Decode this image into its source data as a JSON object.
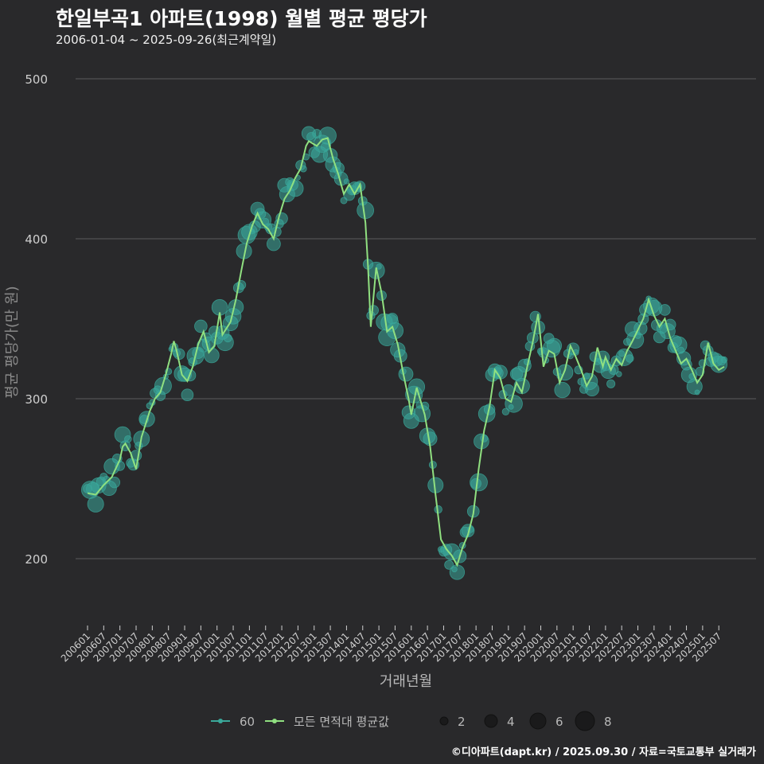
{
  "title": "한일부곡1 아파트(1998) 월별 평균 평당가",
  "subtitle": "2006-01-04 ~ 2025-09-26(최근계약일)",
  "footer": "©디아파트(dapt.kr) / 2025.09.30 / 자료=국토교통부 실거래가",
  "colors": {
    "background": "#29292b",
    "grid": "#5a5a5c",
    "line": "#90e080",
    "bubble": "#3aa89a",
    "text": "#cfcfcf"
  },
  "chart_data": {
    "type": "line",
    "xlabel": "거래년월",
    "ylabel": "평균 평당가(만 원)",
    "ylim": [
      155,
      520
    ],
    "yticks": [
      200,
      300,
      400,
      500
    ],
    "grid": true,
    "legend_position": "bottom",
    "xticks": [
      "200601",
      "200607",
      "200701",
      "200707",
      "200801",
      "200807",
      "200901",
      "200907",
      "201001",
      "201007",
      "201101",
      "201107",
      "201201",
      "201207",
      "201301",
      "201307",
      "201401",
      "201407",
      "201501",
      "201507",
      "201601",
      "201607",
      "201701",
      "201707",
      "201801",
      "201807",
      "201901",
      "201907",
      "202001",
      "202007",
      "202101",
      "202107",
      "202201",
      "202207",
      "202301",
      "202307",
      "202401",
      "202407",
      "202501",
      "202507"
    ],
    "legend": {
      "series": [
        {
          "name": "60",
          "kind": "bubble"
        },
        {
          "name": "모든 면적대 평균값",
          "kind": "line"
        }
      ],
      "sizes": [
        2,
        4,
        6,
        8
      ]
    },
    "series": [
      {
        "name": "모든 면적대 평균값",
        "anchors": [
          [
            "200601",
            241
          ],
          [
            "200604",
            240
          ],
          [
            "200607",
            246
          ],
          [
            "200610",
            251
          ],
          [
            "200701",
            262
          ],
          [
            "200702",
            270
          ],
          [
            "200703",
            272
          ],
          [
            "200705",
            266
          ],
          [
            "200707",
            256
          ],
          [
            "200709",
            276
          ],
          [
            "200712",
            292
          ],
          [
            "200802",
            300
          ],
          [
            "200804",
            304
          ],
          [
            "200806",
            315
          ],
          [
            "200808",
            328
          ],
          [
            "200809",
            336
          ],
          [
            "200810",
            330
          ],
          [
            "200812",
            315
          ],
          [
            "200902",
            311
          ],
          [
            "200904",
            320
          ],
          [
            "200906",
            334
          ],
          [
            "200908",
            342
          ],
          [
            "200910",
            329
          ],
          [
            "200912",
            333
          ],
          [
            "201002",
            354
          ],
          [
            "201003",
            340
          ],
          [
            "201006",
            348
          ],
          [
            "201008",
            362
          ],
          [
            "201010",
            380
          ],
          [
            "201012",
            397
          ],
          [
            "201102",
            408
          ],
          [
            "201104",
            416
          ],
          [
            "201106",
            409
          ],
          [
            "201108",
            406
          ],
          [
            "201110",
            400
          ],
          [
            "201112",
            414
          ],
          [
            "201202",
            425
          ],
          [
            "201204",
            430
          ],
          [
            "201206",
            438
          ],
          [
            "201208",
            444
          ],
          [
            "201210",
            458
          ],
          [
            "201211",
            461
          ],
          [
            "201302",
            458
          ],
          [
            "201304",
            462
          ],
          [
            "201306",
            463
          ],
          [
            "201308",
            450
          ],
          [
            "201310",
            440
          ],
          [
            "201312",
            428
          ],
          [
            "201402",
            434
          ],
          [
            "201404",
            428
          ],
          [
            "201406",
            434
          ],
          [
            "201408",
            410
          ],
          [
            "201409",
            382
          ],
          [
            "201410",
            345
          ],
          [
            "201412",
            382
          ],
          [
            "201502",
            366
          ],
          [
            "201504",
            342
          ],
          [
            "201506",
            345
          ],
          [
            "201508",
            334
          ],
          [
            "201510",
            316
          ],
          [
            "201512",
            300
          ],
          [
            "201601",
            290
          ],
          [
            "201603",
            307
          ],
          [
            "201606",
            290
          ],
          [
            "201608",
            270
          ],
          [
            "201610",
            240
          ],
          [
            "201612",
            212
          ],
          [
            "201702",
            206
          ],
          [
            "201704",
            202
          ],
          [
            "201706",
            196
          ],
          [
            "201708",
            207
          ],
          [
            "201710",
            215
          ],
          [
            "201712",
            228
          ],
          [
            "201802",
            256
          ],
          [
            "201804",
            280
          ],
          [
            "201806",
            295
          ],
          [
            "201808",
            318
          ],
          [
            "201810",
            313
          ],
          [
            "201812",
            300
          ],
          [
            "201902",
            298
          ],
          [
            "201904",
            310
          ],
          [
            "201906",
            304
          ],
          [
            "201908",
            320
          ],
          [
            "201910",
            335
          ],
          [
            "201912",
            353
          ],
          [
            "202002",
            320
          ],
          [
            "202004",
            330
          ],
          [
            "202006",
            328
          ],
          [
            "202008",
            310
          ],
          [
            "202010",
            318
          ],
          [
            "202012",
            333
          ],
          [
            "202102",
            326
          ],
          [
            "202104",
            318
          ],
          [
            "202106",
            308
          ],
          [
            "202108",
            314
          ],
          [
            "202110",
            332
          ],
          [
            "202112",
            320
          ],
          [
            "202201",
            326
          ],
          [
            "202203",
            318
          ],
          [
            "202205",
            325
          ],
          [
            "202207",
            321
          ],
          [
            "202209",
            330
          ],
          [
            "202211",
            336
          ],
          [
            "202301",
            343
          ],
          [
            "202303",
            350
          ],
          [
            "202305",
            362
          ],
          [
            "202307",
            352
          ],
          [
            "202309",
            345
          ],
          [
            "202311",
            350
          ],
          [
            "202401",
            338
          ],
          [
            "202403",
            330
          ],
          [
            "202405",
            322
          ],
          [
            "202407",
            325
          ],
          [
            "202409",
            318
          ],
          [
            "202411",
            310
          ],
          [
            "202501",
            315
          ],
          [
            "202503",
            335
          ],
          [
            "202505",
            322
          ],
          [
            "202507",
            318
          ],
          [
            "202509",
            320
          ]
        ]
      }
    ]
  }
}
